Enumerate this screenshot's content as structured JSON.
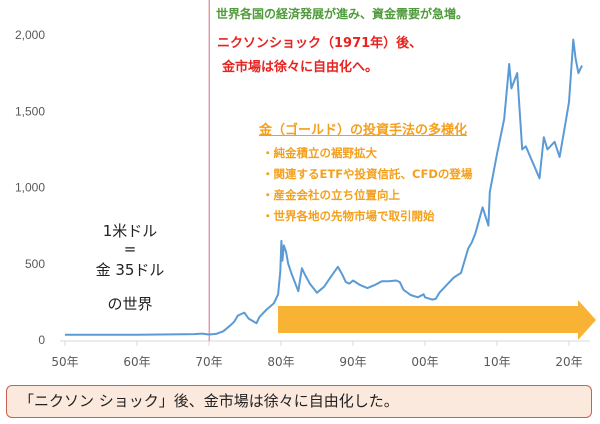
{
  "chart_data": {
    "type": "line",
    "xlabel": "",
    "ylabel": "",
    "xlim": [
      1950,
      2023
    ],
    "ylim": [
      0,
      2000
    ],
    "grid": false,
    "x_ticks": [
      1950,
      1960,
      1970,
      1980,
      1990,
      2000,
      2010,
      2020
    ],
    "x_tick_labels": [
      "50年",
      "60年",
      "70年",
      "80年",
      "90年",
      "00年",
      "10年",
      "20年"
    ],
    "y_ticks": [
      0,
      500,
      1000,
      1500,
      2000
    ],
    "y_tick_labels": [
      "0",
      "500",
      "1,000",
      "1,500",
      "2,000"
    ],
    "line_color": "#5b9bd5",
    "series": [
      {
        "x": [
          1950,
          1960,
          1968,
          1969,
          1970,
          1971,
          1972,
          1973,
          1973.5,
          1974,
          1974.9,
          1975.5,
          1976.6,
          1977,
          1978,
          1979,
          1979.6,
          1979.9,
          1980.05,
          1980.2,
          1980.4,
          1980.7,
          1981,
          1981.5,
          1982.4,
          1982.9,
          1983.3,
          1984,
          1985,
          1985.5,
          1986,
          1987,
          1987.9,
          1988.5,
          1989,
          1989.5,
          1990,
          1991,
          1992,
          1993,
          1994,
          1995,
          1996,
          1996.5,
          1997,
          1998,
          1999,
          1999.8,
          2000,
          2001,
          2001.5,
          2002,
          2003,
          2004,
          2005,
          2006,
          2006.5,
          2007,
          2008,
          2008.8,
          2009,
          2010,
          2011,
          2011.7,
          2012,
          2012.8,
          2013.5,
          2014,
          2015,
          2015.9,
          2016.5,
          2017,
          2018,
          2018.7,
          2019.5,
          2020,
          2020.6,
          2020.9,
          2021.3,
          2021.8
        ],
        "y": [
          35,
          35,
          39,
          42,
          36,
          40,
          58,
          97,
          120,
          160,
          180,
          140,
          110,
          150,
          200,
          240,
          300,
          450,
          650,
          520,
          620,
          580,
          500,
          430,
          320,
          470,
          430,
          370,
          310,
          330,
          350,
          420,
          480,
          430,
          380,
          370,
          390,
          360,
          340,
          360,
          385,
          385,
          390,
          380,
          330,
          295,
          280,
          300,
          280,
          265,
          270,
          310,
          360,
          410,
          440,
          600,
          640,
          700,
          870,
          750,
          970,
          1220,
          1450,
          1810,
          1650,
          1750,
          1250,
          1270,
          1160,
          1060,
          1330,
          1250,
          1300,
          1200,
          1420,
          1560,
          1970,
          1850,
          1750,
          1800
        ]
      }
    ]
  },
  "annotations": {
    "green_note": "世界各国の経済発展が進み、資金需要が急増。",
    "red_note_1": "ニクソンショック（1971年）後、",
    "red_note_2": "金市場は徐々に自由化へ。",
    "orange_heading": "金（ゴールド）の投資手法の多様化",
    "orange_items": [
      "・純金積立の裾野拡大",
      "・関連するETFや投資信託、CFDの登場",
      "・産金会社の立ち位置向上",
      "・世界各地の先物市場で取引開始"
    ],
    "left_text_1": "1米ドル",
    "left_text_2": "=",
    "left_text_3": "金 35ドル",
    "left_text_4": "の世界",
    "nixon_line_year": 1971
  },
  "bottom_note": "「ニクソン ショック」後、金市場は徐々に自由化した。",
  "colors": {
    "line": "#5b9bd5",
    "arrow": "#f8b334",
    "vline": "#d86a86",
    "green": "#4f9a3a",
    "red": "#e8231f",
    "orange": "#f4a01c"
  }
}
